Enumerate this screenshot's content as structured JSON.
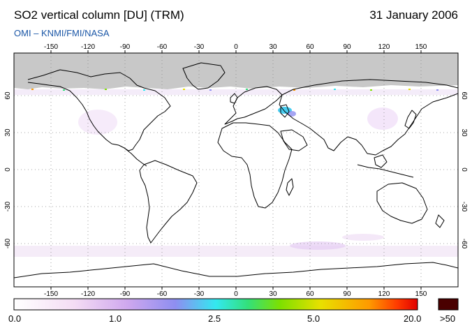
{
  "header": {
    "title": "SO2 vertical column [DU] (TRM)",
    "date": "31 January 2006",
    "credit": "OMI  –  KNMI/FMI/NASA"
  },
  "map": {
    "projection": "equirectangular",
    "lon_ticks": [
      "-150",
      "-120",
      "-90",
      "-60",
      "-30",
      "0",
      "30",
      "60",
      "90",
      "120",
      "150"
    ],
    "lat_ticks_left": [
      "60",
      "30",
      "0",
      "-30",
      "-60"
    ],
    "lat_ticks_right": [
      "60",
      "30",
      "0",
      "-30",
      "-60"
    ],
    "no_data_color": "#c8c8c8",
    "coast_color": "#000000",
    "grid_style": "dotted"
  },
  "colorbar": {
    "labels": [
      "0.0",
      "1.0",
      "2.5",
      "5.0",
      "20.0",
      ">50"
    ],
    "stops": [
      "#ffffff",
      "#f2d6f2",
      "#c9a2ee",
      "#8e8ef0",
      "#33e8f0",
      "#33e07a",
      "#7ee000",
      "#e8e000",
      "#ff9a00",
      "#ff3a00",
      "#e00000"
    ],
    "over_color": "#4a0000"
  }
}
